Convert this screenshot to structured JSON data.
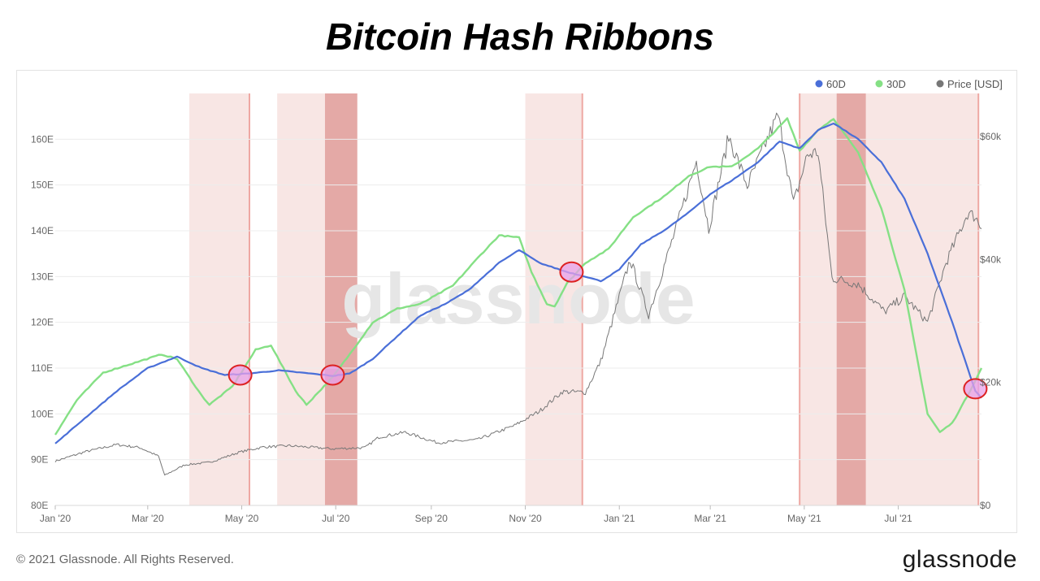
{
  "title": "Bitcoin Hash Ribbons",
  "footer": "© 2021 Glassnode. All Rights Reserved.",
  "brand": "glassnode",
  "watermark": "glassnode",
  "chart_data": {
    "type": "line",
    "title": "Bitcoin Hash Ribbons",
    "x_ticks": [
      "Jan '20",
      "Mar '20",
      "May '20",
      "Jul '20",
      "Sep '20",
      "Nov '20",
      "Jan '21",
      "Mar '21",
      "May '21",
      "Jul '21"
    ],
    "x_range": [
      "2020-01-01",
      "2021-08-24"
    ],
    "y_left_ticks": [
      "80E",
      "90E",
      "100E",
      "110E",
      "120E",
      "130E",
      "140E",
      "150E",
      "160E"
    ],
    "y_left_range": [
      80,
      170
    ],
    "y_right_ticks": [
      "$0",
      "$20k",
      "$40k",
      "$60k"
    ],
    "y_right_range": [
      0,
      67000
    ],
    "legend_position": "top-right",
    "grid": true,
    "colors": {
      "60D": "#4a6fd8",
      "30D": "#85e085",
      "price": "#777777",
      "band_light": "#f6dedb",
      "band_dark": "#df9a96",
      "band_line": "#eea8a3",
      "circle_fill": "#e8a0e8",
      "circle_stroke": "#dd2222"
    },
    "series": [
      {
        "name": "60D",
        "axis": "left",
        "points": [
          [
            "2020-01-01",
            93.5
          ],
          [
            "2020-01-20",
            99
          ],
          [
            "2020-02-10",
            105
          ],
          [
            "2020-03-01",
            110
          ],
          [
            "2020-03-20",
            112.5
          ],
          [
            "2020-04-05",
            110
          ],
          [
            "2020-04-20",
            108.5
          ],
          [
            "2020-05-05",
            108.8
          ],
          [
            "2020-05-25",
            109.5
          ],
          [
            "2020-06-15",
            108.8
          ],
          [
            "2020-06-29",
            108.3
          ],
          [
            "2020-07-10",
            108.8
          ],
          [
            "2020-07-25",
            112
          ],
          [
            "2020-08-10",
            117
          ],
          [
            "2020-08-25",
            121.5
          ],
          [
            "2020-09-10",
            124
          ],
          [
            "2020-09-25",
            127
          ],
          [
            "2020-10-15",
            133
          ],
          [
            "2020-10-28",
            135.8
          ],
          [
            "2020-11-10",
            133
          ],
          [
            "2020-11-28",
            131
          ],
          [
            "2020-12-10",
            130
          ],
          [
            "2020-12-20",
            129
          ],
          [
            "2021-01-01",
            131.5
          ],
          [
            "2021-01-15",
            137
          ],
          [
            "2021-02-01",
            140.5
          ],
          [
            "2021-02-15",
            144
          ],
          [
            "2021-03-01",
            148
          ],
          [
            "2021-03-15",
            151
          ],
          [
            "2021-04-01",
            155
          ],
          [
            "2021-04-15",
            159.5
          ],
          [
            "2021-04-28",
            158
          ],
          [
            "2021-05-10",
            162
          ],
          [
            "2021-05-20",
            163.5
          ],
          [
            "2021-06-05",
            160
          ],
          [
            "2021-06-20",
            155
          ],
          [
            "2021-07-05",
            147
          ],
          [
            "2021-07-20",
            135
          ],
          [
            "2021-08-05",
            120
          ],
          [
            "2021-08-15",
            110
          ],
          [
            "2021-08-20",
            105
          ],
          [
            "2021-08-24",
            103.5
          ]
        ]
      },
      {
        "name": "30D",
        "axis": "left",
        "points": [
          [
            "2020-01-01",
            95.5
          ],
          [
            "2020-01-15",
            103
          ],
          [
            "2020-02-01",
            109
          ],
          [
            "2020-02-20",
            111
          ],
          [
            "2020-03-10",
            113
          ],
          [
            "2020-03-20",
            112
          ],
          [
            "2020-04-05",
            104
          ],
          [
            "2020-04-10",
            102
          ],
          [
            "2020-04-25",
            106
          ],
          [
            "2020-05-10",
            114
          ],
          [
            "2020-05-20",
            115
          ],
          [
            "2020-06-05",
            105
          ],
          [
            "2020-06-12",
            102
          ],
          [
            "2020-06-29",
            108
          ],
          [
            "2020-07-10",
            113
          ],
          [
            "2020-07-25",
            120
          ],
          [
            "2020-08-10",
            123
          ],
          [
            "2020-08-25",
            124
          ],
          [
            "2020-09-15",
            128
          ],
          [
            "2020-10-01",
            134
          ],
          [
            "2020-10-15",
            139
          ],
          [
            "2020-10-28",
            138.5
          ],
          [
            "2020-11-05",
            131
          ],
          [
            "2020-11-15",
            124
          ],
          [
            "2020-11-20",
            123.5
          ],
          [
            "2020-11-28",
            128.5
          ],
          [
            "2020-12-10",
            133
          ],
          [
            "2020-12-25",
            136
          ],
          [
            "2021-01-10",
            143
          ],
          [
            "2021-02-01",
            148
          ],
          [
            "2021-02-15",
            152
          ],
          [
            "2021-03-01",
            154
          ],
          [
            "2021-03-15",
            154
          ],
          [
            "2021-04-01",
            158
          ],
          [
            "2021-04-20",
            164.5
          ],
          [
            "2021-04-28",
            157.5
          ],
          [
            "2021-05-10",
            162
          ],
          [
            "2021-05-20",
            164.5
          ],
          [
            "2021-06-05",
            157
          ],
          [
            "2021-06-20",
            145
          ],
          [
            "2021-07-05",
            127
          ],
          [
            "2021-07-20",
            100
          ],
          [
            "2021-07-28",
            96
          ],
          [
            "2021-08-05",
            98
          ],
          [
            "2021-08-15",
            104
          ],
          [
            "2021-08-24",
            110
          ]
        ]
      },
      {
        "name": "Price [USD]",
        "axis": "right",
        "points": [
          [
            "2020-01-01",
            7200
          ],
          [
            "2020-01-20",
            8700
          ],
          [
            "2020-02-10",
            9900
          ],
          [
            "2020-02-25",
            9400
          ],
          [
            "2020-03-08",
            8000
          ],
          [
            "2020-03-12",
            4900
          ],
          [
            "2020-03-25",
            6600
          ],
          [
            "2020-04-10",
            7000
          ],
          [
            "2020-04-30",
            8700
          ],
          [
            "2020-05-15",
            9500
          ],
          [
            "2020-06-01",
            9700
          ],
          [
            "2020-06-29",
            9200
          ],
          [
            "2020-07-20",
            9400
          ],
          [
            "2020-07-29",
            11100
          ],
          [
            "2020-08-15",
            11900
          ],
          [
            "2020-09-05",
            10200
          ],
          [
            "2020-10-01",
            10700
          ],
          [
            "2020-10-25",
            13000
          ],
          [
            "2020-11-10",
            15300
          ],
          [
            "2020-11-25",
            18500
          ],
          [
            "2020-12-10",
            18400
          ],
          [
            "2020-12-20",
            23500
          ],
          [
            "2021-01-08",
            40000
          ],
          [
            "2021-01-20",
            31000
          ],
          [
            "2021-02-08",
            46000
          ],
          [
            "2021-02-20",
            56000
          ],
          [
            "2021-02-28",
            45000
          ],
          [
            "2021-03-13",
            60000
          ],
          [
            "2021-03-25",
            52000
          ],
          [
            "2021-04-14",
            63500
          ],
          [
            "2021-04-24",
            49000
          ],
          [
            "2021-05-03",
            57000
          ],
          [
            "2021-05-10",
            57500
          ],
          [
            "2021-05-19",
            37000
          ],
          [
            "2021-06-05",
            36000
          ],
          [
            "2021-06-22",
            31500
          ],
          [
            "2021-07-05",
            34000
          ],
          [
            "2021-07-20",
            29800
          ],
          [
            "2021-08-01",
            39500
          ],
          [
            "2021-08-15",
            47500
          ],
          [
            "2021-08-20",
            47000
          ],
          [
            "2021-08-24",
            45000
          ]
        ]
      }
    ],
    "capitulation_bands": [
      {
        "start": "2020-03-28",
        "end": "2020-05-06",
        "shade": "light"
      },
      {
        "start": "2020-05-24",
        "end": "2020-06-24",
        "shade": "light"
      },
      {
        "start": "2020-06-24",
        "end": "2020-07-15",
        "shade": "dark"
      },
      {
        "start": "2020-11-01",
        "end": "2020-12-08",
        "shade": "light"
      },
      {
        "start": "2021-04-28",
        "end": "2021-05-22",
        "shade": "light"
      },
      {
        "start": "2021-05-22",
        "end": "2021-06-10",
        "shade": "dark"
      },
      {
        "start": "2021-06-10",
        "end": "2021-08-22",
        "shade": "light"
      }
    ],
    "band_lines": [
      "2020-05-06",
      "2020-12-08",
      "2021-04-28",
      "2021-08-22"
    ],
    "recovery_circles": [
      {
        "date": "2020-04-30",
        "value": 108.5
      },
      {
        "date": "2020-06-29",
        "value": 108.5
      },
      {
        "date": "2020-12-01",
        "value": 131
      },
      {
        "date": "2021-08-20",
        "value": 105.5
      }
    ]
  }
}
